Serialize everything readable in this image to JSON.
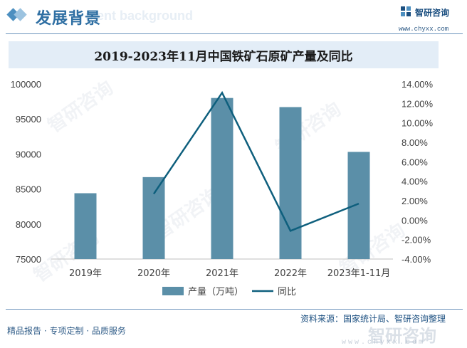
{
  "header": {
    "section_title": "发展背景",
    "section_subtitle": "ment background",
    "brand": "智研咨询",
    "url": "www.chyxx.com"
  },
  "watermark": {
    "text": "智研咨询"
  },
  "footer": {
    "source": "资料来源：国家统计局、智研咨询整理",
    "tagline": "精品报告 · 专项定制 · 品质服务",
    "logo_text": "智研咨询",
    "url": "www.chyxx.com"
  },
  "colors": {
    "bar": "#5b8fa8",
    "line": "#0e5f7d",
    "accent": "#2f6fa3"
  },
  "chart_data": {
    "type": "bar+line",
    "title": "2019-2023年11月中国铁矿石原矿产量及同比",
    "categories": [
      "2019年",
      "2020年",
      "2021年",
      "2022年",
      "2023年1-11月"
    ],
    "series": [
      {
        "name": "产量（万吨）",
        "type": "bar",
        "axis": "left",
        "values": [
          84400,
          86700,
          98000,
          96700,
          90300
        ]
      },
      {
        "name": "同比",
        "type": "line",
        "axis": "right",
        "values": [
          null,
          2.7,
          13.1,
          -1.1,
          1.7
        ]
      }
    ],
    "y_left": {
      "min": 75000,
      "max": 100000,
      "ticks": [
        "75000",
        "80000",
        "85000",
        "90000",
        "95000",
        "100000"
      ]
    },
    "y_right": {
      "min": -4,
      "max": 14,
      "ticks": [
        "-4.00%",
        "-2.00%",
        "0.00%",
        "2.00%",
        "4.00%",
        "6.00%",
        "8.00%",
        "10.00%",
        "12.00%",
        "14.00%"
      ]
    },
    "grid": false,
    "legend": "bottom"
  }
}
